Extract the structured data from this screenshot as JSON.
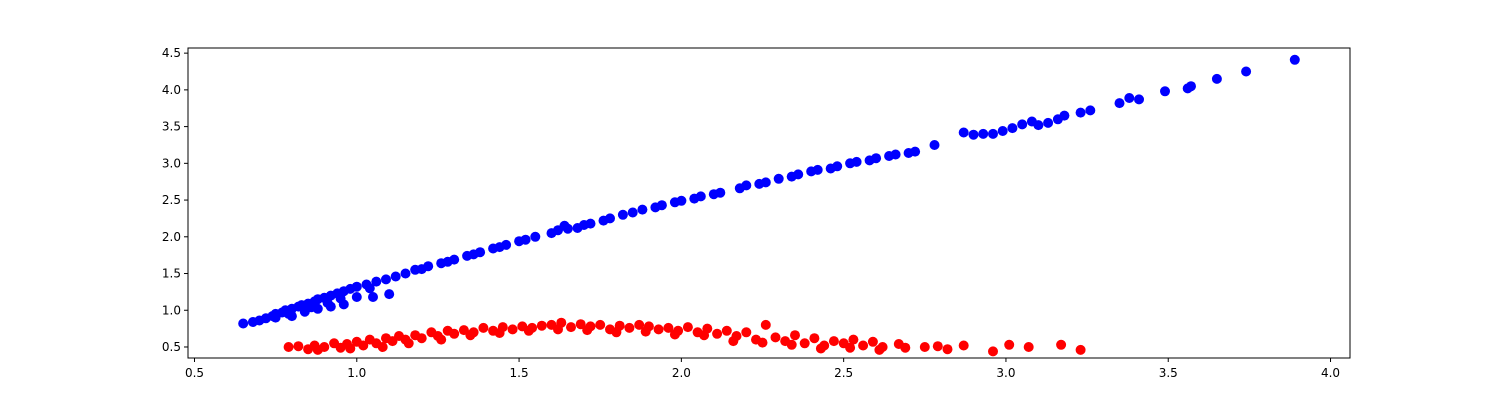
{
  "chart_data": {
    "type": "scatter",
    "title": "",
    "xlabel": "",
    "ylabel": "",
    "xlim": [
      0.48,
      4.06
    ],
    "ylim": [
      0.35,
      4.57
    ],
    "x_ticks": [
      "0.5",
      "1.0",
      "1.5",
      "2.0",
      "2.5",
      "3.0",
      "3.5",
      "4.0"
    ],
    "y_ticks": [
      "0.5",
      "1.0",
      "1.5",
      "2.0",
      "2.5",
      "3.0",
      "3.5",
      "4.0",
      "4.5"
    ],
    "grid": false,
    "legend": "none",
    "series": [
      {
        "color": "#0000ff",
        "points": [
          [
            0.65,
            0.82
          ],
          [
            0.68,
            0.84
          ],
          [
            0.7,
            0.86
          ],
          [
            0.72,
            0.89
          ],
          [
            0.74,
            0.92
          ],
          [
            0.75,
            0.95
          ],
          [
            0.77,
            0.97
          ],
          [
            0.78,
            1.0
          ],
          [
            0.8,
            1.02
          ],
          [
            0.82,
            1.05
          ],
          [
            0.83,
            1.07
          ],
          [
            0.85,
            1.09
          ],
          [
            0.87,
            1.12
          ],
          [
            0.88,
            1.15
          ],
          [
            0.9,
            1.17
          ],
          [
            0.92,
            1.2
          ],
          [
            0.94,
            1.23
          ],
          [
            0.96,
            1.26
          ],
          [
            0.98,
            1.29
          ],
          [
            1.0,
            1.32
          ],
          [
            1.03,
            1.35
          ],
          [
            1.06,
            1.39
          ],
          [
            1.09,
            1.42
          ],
          [
            1.12,
            1.46
          ],
          [
            1.15,
            1.5
          ],
          [
            1.18,
            1.55
          ],
          [
            1.22,
            1.6
          ],
          [
            1.26,
            1.64
          ],
          [
            1.3,
            1.69
          ],
          [
            1.34,
            1.74
          ],
          [
            1.38,
            1.79
          ],
          [
            1.42,
            1.84
          ],
          [
            1.46,
            1.89
          ],
          [
            1.5,
            1.94
          ],
          [
            1.55,
            2.0
          ],
          [
            1.6,
            2.05
          ],
          [
            1.65,
            2.11
          ],
          [
            1.7,
            2.16
          ],
          [
            1.76,
            2.22
          ],
          [
            1.82,
            2.3
          ],
          [
            1.88,
            2.37
          ],
          [
            1.94,
            2.43
          ],
          [
            2.0,
            2.49
          ],
          [
            2.06,
            2.55
          ],
          [
            2.12,
            2.6
          ],
          [
            2.18,
            2.66
          ],
          [
            2.24,
            2.72
          ],
          [
            2.3,
            2.79
          ],
          [
            2.36,
            2.85
          ],
          [
            2.42,
            2.91
          ],
          [
            2.48,
            2.96
          ],
          [
            2.54,
            3.02
          ],
          [
            2.6,
            3.07
          ],
          [
            2.66,
            3.12
          ],
          [
            2.72,
            3.16
          ],
          [
            2.78,
            3.25
          ],
          [
            0.8,
            0.92
          ],
          [
            0.84,
            0.98
          ],
          [
            0.88,
            1.02
          ],
          [
            0.92,
            1.05
          ],
          [
            0.96,
            1.08
          ],
          [
            1.05,
            1.18
          ],
          [
            1.1,
            1.22
          ],
          [
            0.75,
            0.9
          ],
          [
            0.79,
            0.95
          ],
          [
            0.86,
            1.04
          ],
          [
            0.91,
            1.1
          ],
          [
            0.95,
            1.16
          ],
          [
            1.0,
            1.18
          ],
          [
            1.04,
            1.3
          ],
          [
            1.2,
            1.56
          ],
          [
            1.28,
            1.66
          ],
          [
            1.36,
            1.76
          ],
          [
            1.44,
            1.86
          ],
          [
            1.52,
            1.96
          ],
          [
            1.62,
            2.09
          ],
          [
            1.64,
            2.15
          ],
          [
            1.68,
            2.12
          ],
          [
            1.72,
            2.18
          ],
          [
            1.78,
            2.25
          ],
          [
            1.85,
            2.33
          ],
          [
            1.92,
            2.4
          ],
          [
            1.98,
            2.47
          ],
          [
            2.04,
            2.52
          ],
          [
            2.1,
            2.58
          ],
          [
            2.2,
            2.7
          ],
          [
            2.26,
            2.74
          ],
          [
            2.34,
            2.82
          ],
          [
            2.4,
            2.89
          ],
          [
            2.46,
            2.93
          ],
          [
            2.52,
            3.0
          ],
          [
            2.58,
            3.04
          ],
          [
            2.64,
            3.1
          ],
          [
            2.7,
            3.14
          ],
          [
            2.87,
            3.42
          ],
          [
            2.9,
            3.39
          ],
          [
            2.93,
            3.4
          ],
          [
            2.96,
            3.4
          ],
          [
            2.99,
            3.44
          ],
          [
            3.02,
            3.48
          ],
          [
            3.05,
            3.53
          ],
          [
            3.08,
            3.57
          ],
          [
            3.1,
            3.52
          ],
          [
            3.13,
            3.55
          ],
          [
            3.16,
            3.6
          ],
          [
            3.18,
            3.65
          ],
          [
            3.23,
            3.69
          ],
          [
            3.26,
            3.72
          ],
          [
            3.35,
            3.82
          ],
          [
            3.38,
            3.89
          ],
          [
            3.41,
            3.87
          ],
          [
            3.49,
            3.98
          ],
          [
            3.56,
            4.02
          ],
          [
            3.57,
            4.05
          ],
          [
            3.65,
            4.15
          ],
          [
            3.74,
            4.25
          ],
          [
            3.89,
            4.41
          ]
        ]
      },
      {
        "color": "#ff0000",
        "points": [
          [
            0.79,
            0.5
          ],
          [
            0.82,
            0.51
          ],
          [
            0.85,
            0.47
          ],
          [
            0.87,
            0.52
          ],
          [
            0.9,
            0.5
          ],
          [
            0.93,
            0.55
          ],
          [
            0.95,
            0.49
          ],
          [
            0.97,
            0.54
          ],
          [
            1.0,
            0.57
          ],
          [
            1.02,
            0.52
          ],
          [
            1.04,
            0.6
          ],
          [
            1.06,
            0.55
          ],
          [
            1.09,
            0.62
          ],
          [
            1.11,
            0.58
          ],
          [
            1.13,
            0.65
          ],
          [
            1.15,
            0.6
          ],
          [
            1.18,
            0.66
          ],
          [
            1.2,
            0.62
          ],
          [
            1.23,
            0.7
          ],
          [
            1.25,
            0.65
          ],
          [
            1.28,
            0.72
          ],
          [
            1.3,
            0.68
          ],
          [
            1.33,
            0.73
          ],
          [
            1.36,
            0.7
          ],
          [
            1.39,
            0.76
          ],
          [
            1.42,
            0.72
          ],
          [
            1.45,
            0.77
          ],
          [
            1.48,
            0.74
          ],
          [
            1.51,
            0.78
          ],
          [
            1.54,
            0.76
          ],
          [
            1.57,
            0.79
          ],
          [
            1.6,
            0.8
          ],
          [
            1.63,
            0.83
          ],
          [
            1.66,
            0.77
          ],
          [
            1.69,
            0.81
          ],
          [
            1.72,
            0.78
          ],
          [
            1.75,
            0.8
          ],
          [
            1.78,
            0.74
          ],
          [
            1.81,
            0.79
          ],
          [
            1.84,
            0.76
          ],
          [
            1.87,
            0.8
          ],
          [
            1.9,
            0.78
          ],
          [
            1.93,
            0.74
          ],
          [
            1.96,
            0.76
          ],
          [
            1.99,
            0.72
          ],
          [
            2.02,
            0.77
          ],
          [
            2.05,
            0.7
          ],
          [
            2.08,
            0.75
          ],
          [
            2.11,
            0.68
          ],
          [
            2.14,
            0.72
          ],
          [
            2.17,
            0.65
          ],
          [
            2.2,
            0.7
          ],
          [
            2.23,
            0.6
          ],
          [
            2.26,
            0.8
          ],
          [
            2.29,
            0.63
          ],
          [
            2.32,
            0.58
          ],
          [
            2.35,
            0.66
          ],
          [
            2.38,
            0.55
          ],
          [
            2.41,
            0.62
          ],
          [
            2.44,
            0.52
          ],
          [
            2.47,
            0.58
          ],
          [
            2.5,
            0.55
          ],
          [
            2.53,
            0.6
          ],
          [
            2.56,
            0.52
          ],
          [
            2.59,
            0.57
          ],
          [
            2.62,
            0.5
          ],
          [
            2.67,
            0.54
          ],
          [
            2.69,
            0.49
          ],
          [
            2.75,
            0.5
          ],
          [
            2.79,
            0.51
          ],
          [
            2.82,
            0.47
          ],
          [
            2.87,
            0.52
          ],
          [
            2.96,
            0.44
          ],
          [
            3.01,
            0.53
          ],
          [
            3.07,
            0.5
          ],
          [
            3.17,
            0.53
          ],
          [
            3.23,
            0.46
          ],
          [
            0.88,
            0.46
          ],
          [
            0.98,
            0.48
          ],
          [
            1.08,
            0.5
          ],
          [
            1.16,
            0.55
          ],
          [
            1.26,
            0.6
          ],
          [
            1.35,
            0.66
          ],
          [
            1.44,
            0.69
          ],
          [
            1.53,
            0.72
          ],
          [
            1.62,
            0.74
          ],
          [
            1.71,
            0.73
          ],
          [
            1.8,
            0.7
          ],
          [
            1.89,
            0.71
          ],
          [
            1.98,
            0.67
          ],
          [
            2.07,
            0.66
          ],
          [
            2.16,
            0.58
          ],
          [
            2.25,
            0.56
          ],
          [
            2.34,
            0.53
          ],
          [
            2.43,
            0.48
          ],
          [
            2.52,
            0.49
          ],
          [
            2.61,
            0.46
          ]
        ]
      }
    ]
  }
}
